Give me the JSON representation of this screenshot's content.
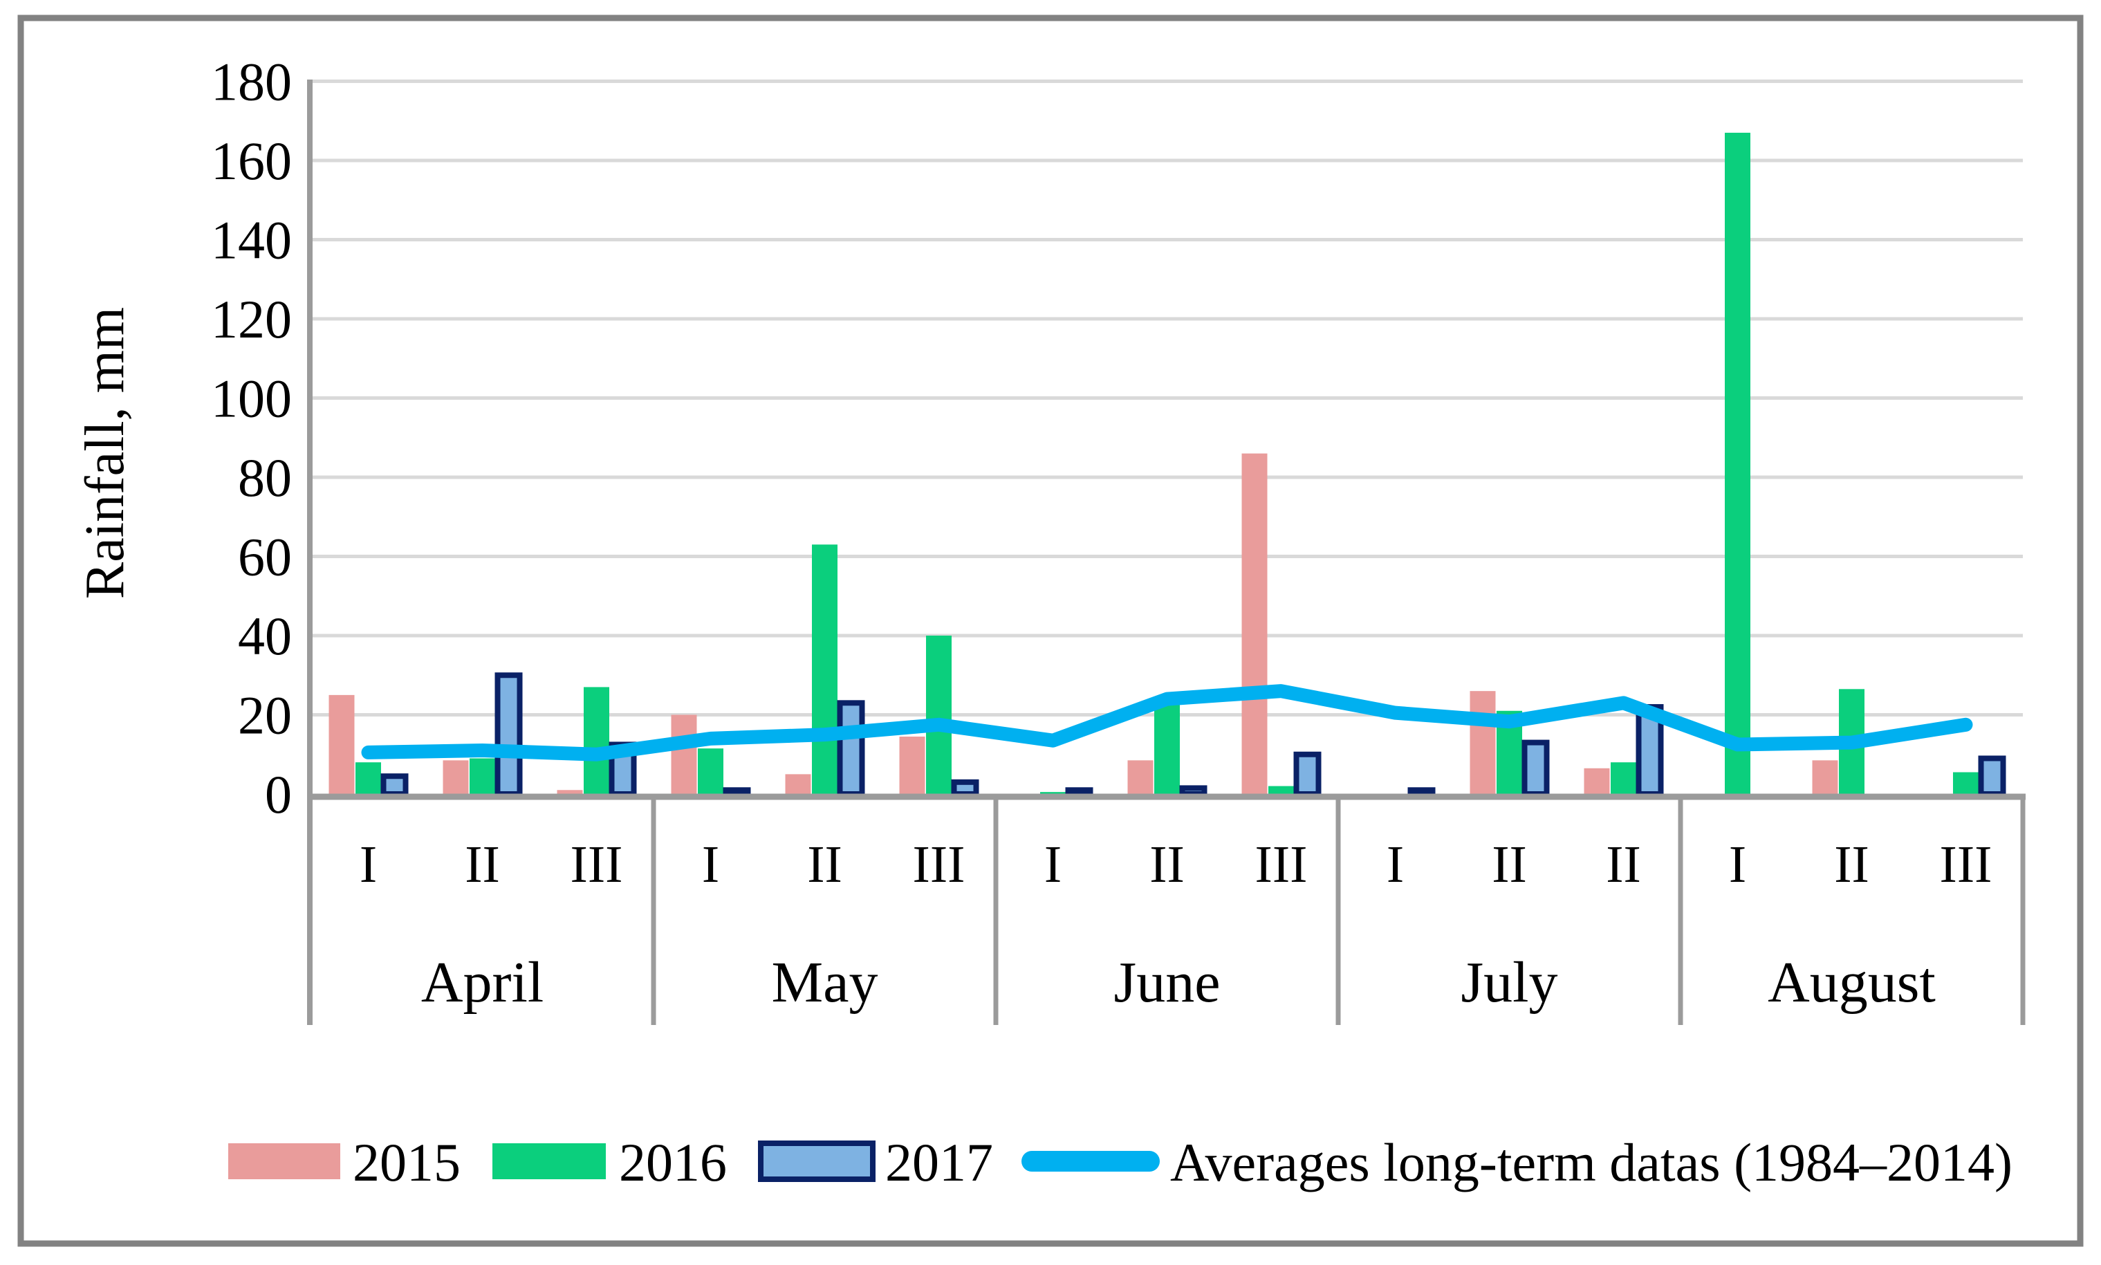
{
  "figure": {
    "background": "#FFFFFF",
    "border_color": "#828282",
    "grid_color": "#D9D9D9",
    "axis_color": "#9B9B9B"
  },
  "chart_data": {
    "type": "bar+line",
    "title": "",
    "ylabel": "Rainfall, mm",
    "xlabel": "",
    "ylim": [
      0,
      180
    ],
    "yticks": [
      0,
      20,
      40,
      60,
      80,
      100,
      120,
      140,
      160,
      180
    ],
    "grid": "horizontal",
    "legend_position": "bottom",
    "months": [
      {
        "label": "April",
        "terciles": [
          "I",
          "II",
          "III"
        ]
      },
      {
        "label": "May",
        "terciles": [
          "I",
          "II",
          "III"
        ]
      },
      {
        "label": "June",
        "terciles": [
          "I",
          "II",
          "III"
        ]
      },
      {
        "label": "July",
        "terciles": [
          "I",
          "II",
          "II"
        ]
      },
      {
        "label": "August",
        "terciles": [
          "I",
          "II",
          "III"
        ]
      }
    ],
    "categories": [
      "April I",
      "April II",
      "April III",
      "May I",
      "May II",
      "May III",
      "June I",
      "June II",
      "June III",
      "July I",
      "July II",
      "July II",
      "August I",
      "August II",
      "August III"
    ],
    "series": [
      {
        "name": "2015",
        "type": "bar",
        "color": "#E99C9B",
        "values": [
          25,
          8.5,
          1,
          20,
          5,
          14.5,
          0,
          8.5,
          86,
          0,
          26,
          6.5,
          0,
          8.5,
          0
        ]
      },
      {
        "name": "2016",
        "type": "bar",
        "color": "#0BCF7D",
        "values": [
          8,
          9,
          27,
          11.5,
          63,
          40,
          0.5,
          22.5,
          2,
          0,
          21,
          8,
          167,
          26.5,
          5.5
        ]
      },
      {
        "name": "2017",
        "type": "bar",
        "color": "#7EB2E2",
        "border_color": "#0A2166",
        "values": [
          4.5,
          30,
          12.5,
          1,
          23,
          3,
          1,
          1.5,
          10,
          1,
          13,
          22,
          0,
          0,
          9
        ]
      },
      {
        "name": "Averages long-term datas (1984–2014)",
        "type": "line",
        "color": "#00B0F0",
        "values": [
          10.5,
          11,
          10,
          14,
          15,
          17.5,
          13.5,
          24,
          26,
          20.5,
          18.3,
          23,
          12.5,
          13,
          17.5
        ]
      }
    ]
  }
}
